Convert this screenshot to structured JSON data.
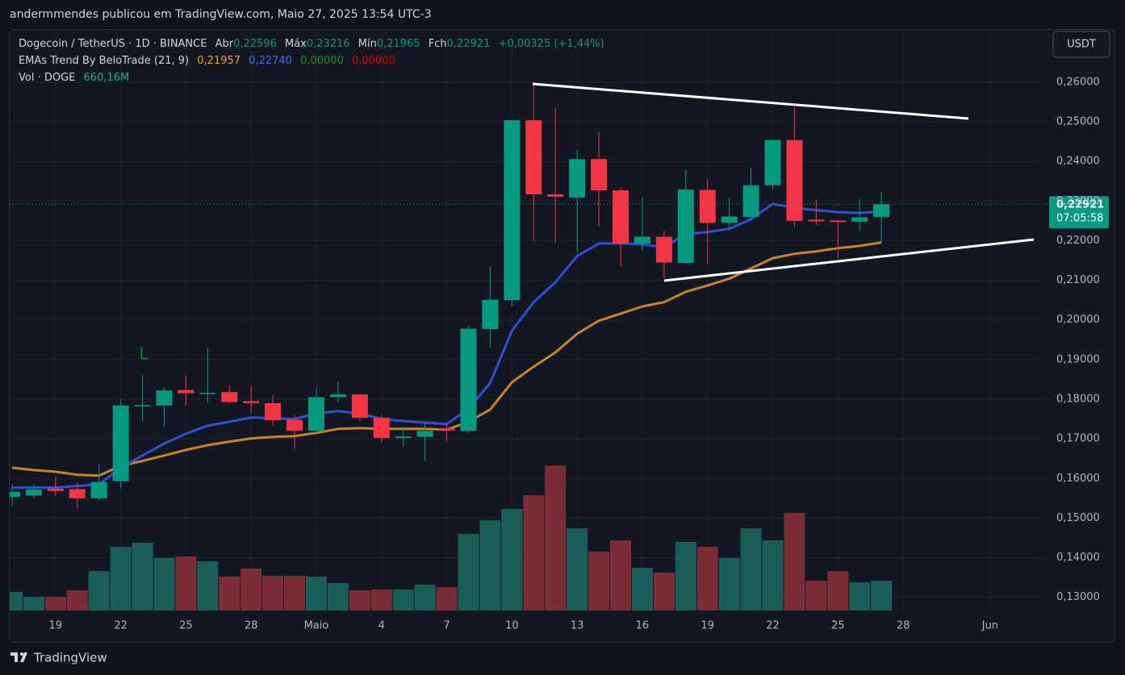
{
  "chart_data": {
    "type": "candlestick",
    "header": "andermmendes publicou em TradingView.com, Maio 27, 2025 13:54 UTC-3",
    "legend": {
      "symbol": "Dogecoin / TetherUS · 1D · BINANCE",
      "open_label": "Abr",
      "open": "0,22596",
      "high_label": "Máx",
      "high": "0,23216",
      "low_label": "Mín",
      "low": "0,21965",
      "close_label": "Fch",
      "close": "0,22921",
      "change": "+0,00325 (+1,44%)",
      "ema_name": "EMAs Trend By BeloTrade (21, 9)",
      "ema_values": [
        "0,21957",
        "0,22740",
        "0,00000",
        "0,00000"
      ],
      "vol_name": "Vol · DOGE",
      "vol_value": "660,16M"
    },
    "currency_button": "USDT",
    "countdown": "07:05:58",
    "annotation": "L",
    "footer": "TradingView",
    "up_color": "#089981",
    "down_color": "#f23645",
    "volume_up_color": "#1b5e58",
    "volume_down_color": "#7a2d36",
    "ema21_color": "#c9832a",
    "ema9_color": "#3050d0",
    "categories": [
      null,
      null,
      "19",
      null,
      null,
      "22",
      null,
      null,
      "25",
      null,
      null,
      "28",
      null,
      null,
      "Maio",
      null,
      null,
      "4",
      null,
      null,
      "7",
      null,
      null,
      "10",
      null,
      null,
      "13",
      null,
      null,
      "16",
      null,
      null,
      "19",
      null,
      null,
      "22",
      null,
      null,
      "25",
      null,
      null,
      "28",
      null,
      null,
      null,
      "Jun",
      null,
      null
    ],
    "open": [
      0.1553,
      0.1557,
      0.1574,
      0.1573,
      0.155,
      0.1593,
      0.1782,
      0.1784,
      0.1823,
      0.1813,
      0.1818,
      0.1795,
      0.179,
      0.1748,
      0.172,
      0.1805,
      0.1812,
      0.1753,
      0.1702,
      0.1705,
      0.1727,
      0.172,
      0.1977,
      0.205,
      0.2504,
      0.2317,
      0.2309,
      0.2406,
      0.2327,
      0.2193,
      0.221,
      0.2144,
      0.2328,
      0.2245,
      0.226,
      0.234,
      0.2454,
      0.2253,
      0.2251,
      0.2248,
      0.22596,
      null,
      null,
      null,
      null,
      null,
      null,
      null
    ],
    "high": [
      0.1585,
      0.1585,
      0.1605,
      0.159,
      0.1635,
      0.18,
      0.186,
      0.183,
      0.186,
      0.193,
      0.1835,
      0.1835,
      0.181,
      0.176,
      0.183,
      0.1845,
      0.1815,
      0.176,
      0.173,
      0.174,
      0.1735,
      0.1985,
      0.2135,
      0.2505,
      0.26,
      0.2535,
      0.243,
      0.2475,
      0.2335,
      0.231,
      0.2225,
      0.238,
      0.2355,
      0.231,
      0.2385,
      0.2455,
      0.254,
      0.2305,
      0.2253,
      0.2305,
      0.23216,
      null,
      null,
      null,
      null,
      null,
      null,
      null
    ],
    "low": [
      0.153,
      0.155,
      0.1555,
      0.1525,
      0.1545,
      0.1575,
      0.1745,
      0.173,
      0.1785,
      0.179,
      0.179,
      0.1765,
      0.1735,
      0.1675,
      0.1715,
      0.179,
      0.1745,
      0.169,
      0.168,
      0.1645,
      0.1695,
      0.1715,
      0.193,
      0.2035,
      0.22,
      0.2195,
      0.217,
      0.2235,
      0.2135,
      0.2175,
      0.2105,
      0.214,
      0.214,
      0.223,
      0.225,
      0.233,
      0.2235,
      0.224,
      0.2155,
      0.2225,
      0.21965,
      null,
      null,
      null,
      null,
      null,
      null,
      null
    ],
    "close": [
      0.1566,
      0.1572,
      0.1568,
      0.155,
      0.1591,
      0.1784,
      0.1785,
      0.1822,
      0.1815,
      0.1816,
      0.1793,
      0.179,
      0.1747,
      0.172,
      0.1805,
      0.1812,
      0.1753,
      0.1702,
      0.1706,
      0.172,
      0.1721,
      0.1978,
      0.2051,
      0.2504,
      0.2317,
      0.2311,
      0.2406,
      0.2327,
      0.2193,
      0.221,
      0.2145,
      0.2329,
      0.2245,
      0.2261,
      0.234,
      0.2454,
      0.225,
      0.2249,
      0.2247,
      0.2259,
      0.22921,
      null,
      null,
      null,
      null,
      null,
      null,
      null
    ],
    "volume": [
      410,
      303,
      303,
      446,
      874,
      1409,
      1499,
      1160,
      1195,
      1088,
      749,
      928,
      767,
      767,
      749,
      607,
      446,
      464,
      464,
      571,
      517,
      1695,
      1998,
      2248,
      2551,
      3211,
      1820,
      1302,
      1552,
      946,
      839,
      1516,
      1409,
      1160,
      1820,
      1552,
      2159,
      660,
      874,
      624,
      660.16,
      null,
      null,
      null,
      null,
      null,
      null,
      null
    ],
    "ema21": [
      0.1627,
      0.1621,
      0.1617,
      0.1609,
      0.1607,
      0.1632,
      0.1644,
      0.1658,
      0.1672,
      0.1684,
      0.1693,
      0.1701,
      0.1705,
      0.1707,
      0.1715,
      0.1725,
      0.1727,
      0.1725,
      0.1725,
      0.1725,
      0.1723,
      0.1743,
      0.1774,
      0.1843,
      0.1882,
      0.1918,
      0.1965,
      0.1998,
      0.2016,
      0.2034,
      0.2045,
      0.2071,
      0.2087,
      0.2104,
      0.213,
      0.2156,
      0.2167,
      0.2173,
      0.2181,
      0.2187,
      0.21957,
      null,
      null,
      null,
      null,
      null,
      null,
      null
    ],
    "ema9": [
      0.1577,
      0.1577,
      0.1577,
      0.1581,
      0.1585,
      0.1627,
      0.1658,
      0.1688,
      0.1713,
      0.1733,
      0.1743,
      0.1754,
      0.1752,
      0.175,
      0.1764,
      0.177,
      0.1764,
      0.175,
      0.1745,
      0.1741,
      0.1737,
      0.1776,
      0.1841,
      0.1973,
      0.2045,
      0.2095,
      0.2161,
      0.2193,
      0.2193,
      0.2191,
      0.2183,
      0.2217,
      0.2222,
      0.223,
      0.2254,
      0.2293,
      0.2283,
      0.2277,
      0.2272,
      0.227,
      0.2274,
      null,
      null,
      null,
      null,
      null,
      null,
      null
    ],
    "ylim": [
      0.12667,
      0.27261
    ],
    "yticks": [
      {
        "value": 0.13,
        "label": "0,13000"
      },
      {
        "value": 0.14,
        "label": "0,14000"
      },
      {
        "value": 0.15,
        "label": "0,15000"
      },
      {
        "value": 0.16,
        "label": "0,16000"
      },
      {
        "value": 0.17,
        "label": "0,17000"
      },
      {
        "value": 0.18,
        "label": "0,18000"
      },
      {
        "value": 0.19,
        "label": "0,19000"
      },
      {
        "value": 0.2,
        "label": "0,20000"
      },
      {
        "value": 0.21,
        "label": "0,21000"
      },
      {
        "value": 0.22,
        "label": "0,22000"
      },
      {
        "value": 0.23,
        "label": "0,23000"
      },
      {
        "value": 0.24,
        "label": "0,24000"
      },
      {
        "value": 0.25,
        "label": "0,25000"
      },
      {
        "value": 0.26,
        "label": "0,26000"
      }
    ],
    "volume_ylim": [
      0,
      12800
    ],
    "grid": true
  }
}
